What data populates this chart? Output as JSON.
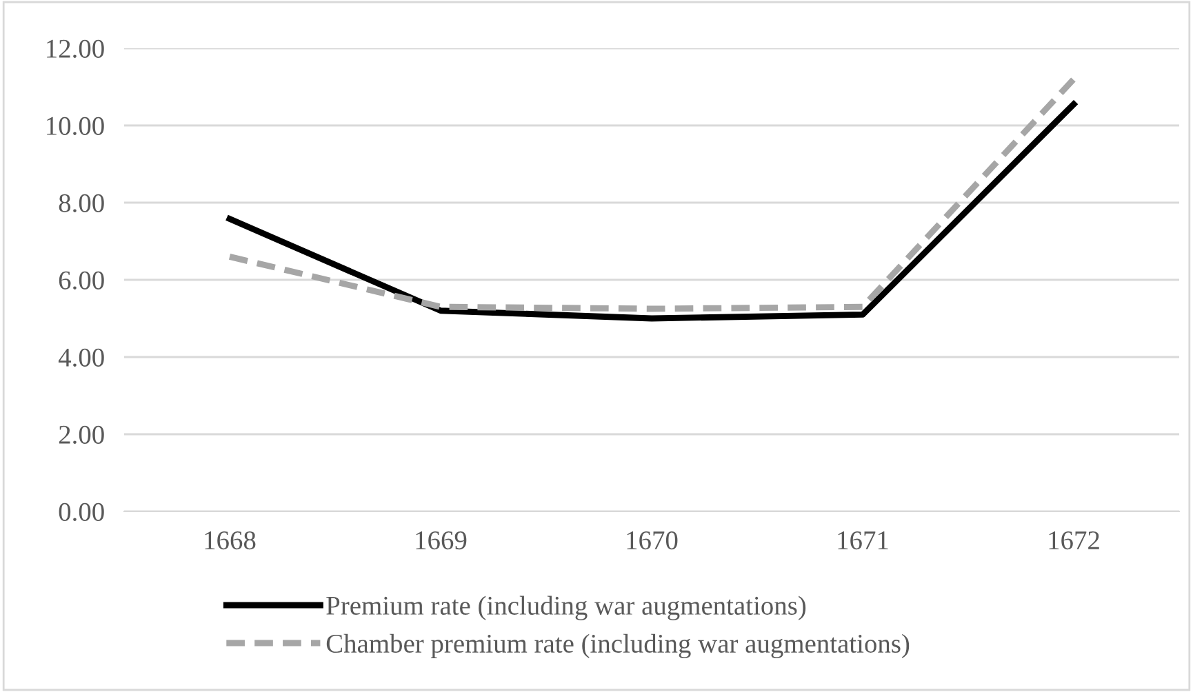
{
  "chart_data": {
    "type": "line",
    "categories": [
      "1668",
      "1669",
      "1670",
      "1671",
      "1672"
    ],
    "series": [
      {
        "name": "Premium rate (including war augmentations)",
        "color": "#000000",
        "line_style": "solid",
        "values": [
          7.58,
          5.2,
          5.0,
          5.1,
          10.55
        ]
      },
      {
        "name": "Chamber premium rate (including war augmentations)",
        "color": "#a6a6a6",
        "line_style": "dashed",
        "values": [
          6.6,
          5.3,
          5.25,
          5.3,
          11.2
        ]
      }
    ],
    "ylim": [
      0,
      12
    ],
    "yticks": [
      {
        "value": 0,
        "label": "0.00"
      },
      {
        "value": 2,
        "label": "2.00"
      },
      {
        "value": 4,
        "label": "4.00"
      },
      {
        "value": 6,
        "label": "6.00"
      },
      {
        "value": 8,
        "label": "8.00"
      },
      {
        "value": 10,
        "label": "10.00"
      },
      {
        "value": 12,
        "label": "12.00"
      }
    ],
    "grid": "y",
    "legend": "bottom",
    "marker": "none"
  }
}
